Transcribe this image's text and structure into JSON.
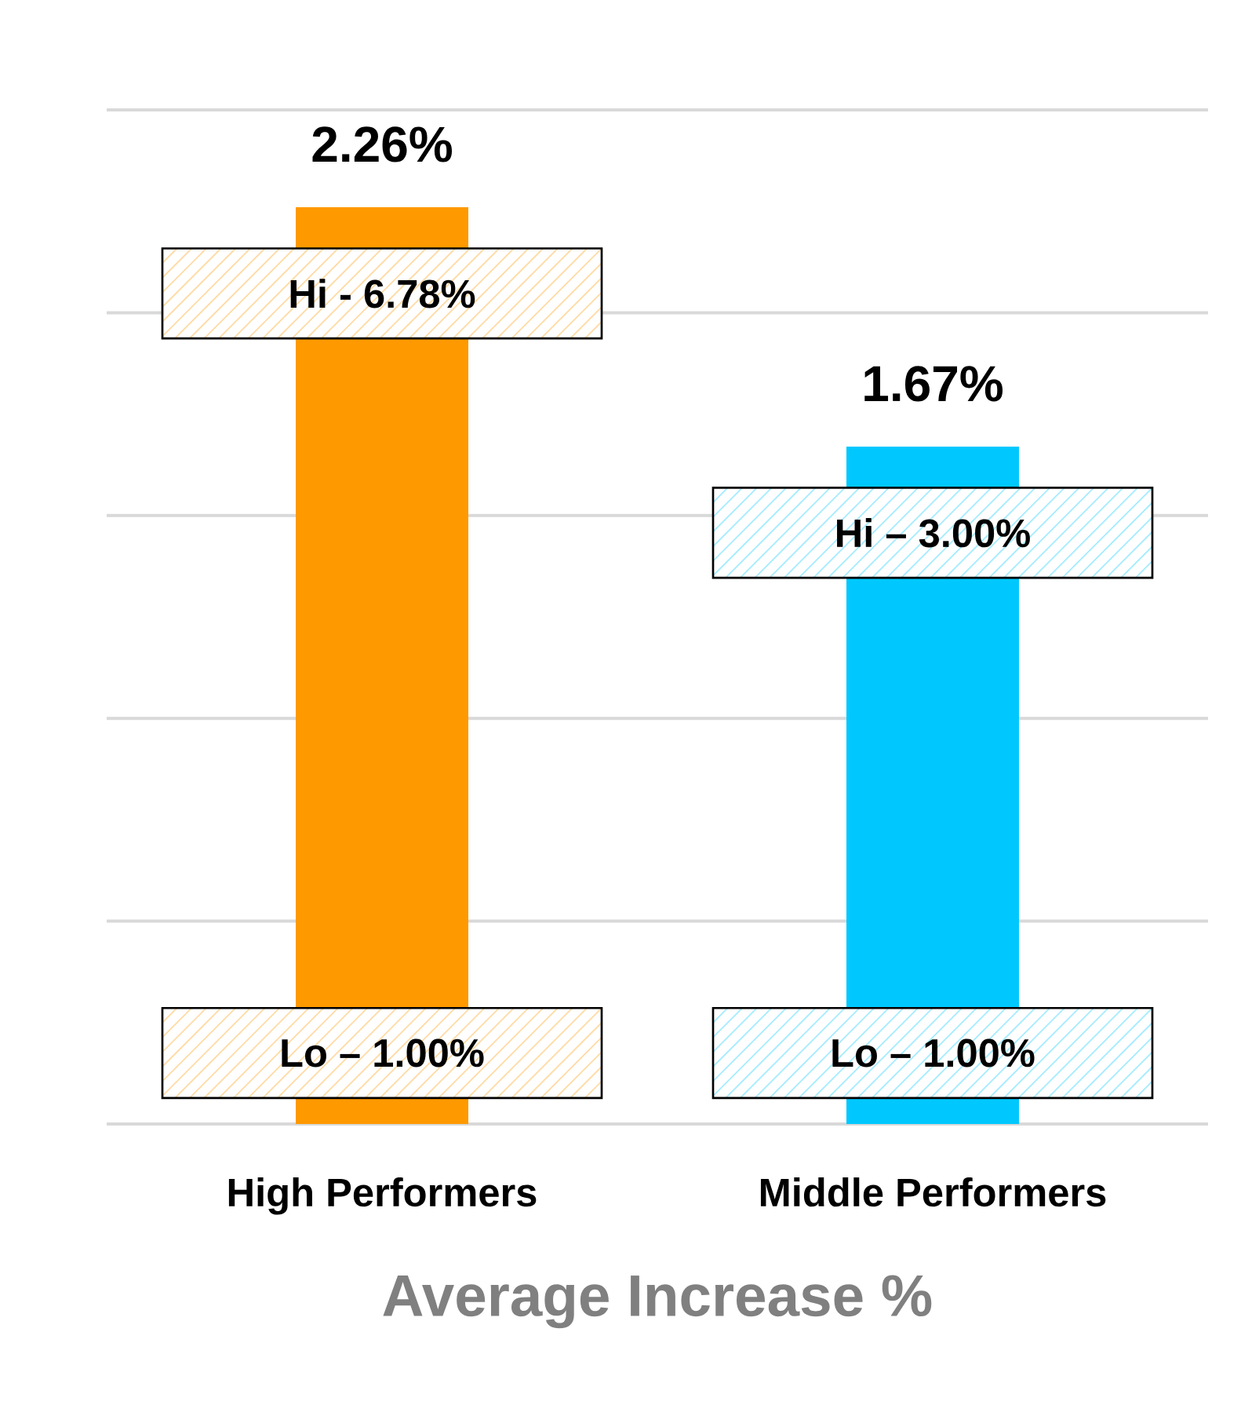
{
  "chart_data": {
    "type": "bar",
    "categories": [
      "High Performers",
      "Middle Performers"
    ],
    "values": [
      2.26,
      1.67
    ],
    "value_labels": [
      "2.26%",
      "1.67%"
    ],
    "colors": [
      "#ff9900",
      "#00c8ff"
    ],
    "ylim": [
      0,
      2.5
    ],
    "yticks": [
      {
        "value": 0,
        "label": null
      },
      {
        "value": 0.5,
        "label": null
      },
      {
        "value": 1,
        "label": null
      },
      {
        "value": 1.5,
        "label": null
      },
      {
        "value": 2,
        "label": null
      },
      {
        "value": 2.5,
        "label": null
      }
    ],
    "tick_labels": "x",
    "grid": "y",
    "xlabel": "Average Increase %",
    "annotations": [
      "Hi - 6.78%",
      "Lo – 1.00%",
      "Hi – 3.00%",
      "Lo – 1.00%"
    ]
  }
}
